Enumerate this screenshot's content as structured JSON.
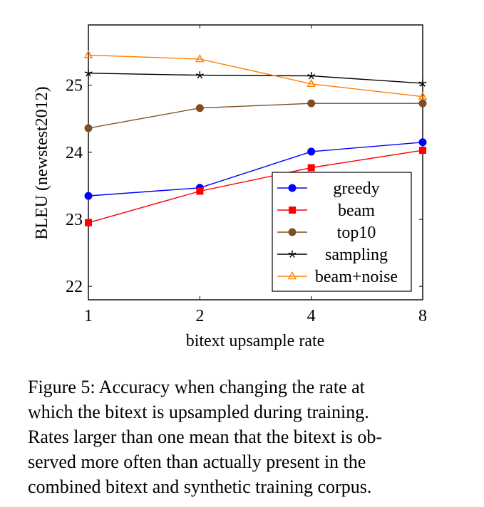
{
  "chart_data": {
    "type": "line",
    "xlabel": "bitext upsample rate",
    "ylabel": "BLEU (newstest2012)",
    "x": [
      "1",
      "2",
      "4",
      "8"
    ],
    "y_ticks": [
      22,
      23,
      24,
      25
    ],
    "ylim": [
      21.8,
      25.9
    ],
    "grid": false,
    "legend_position": "lower-right",
    "series": [
      {
        "name": "greedy",
        "color": "#0000ff",
        "marker": "circle",
        "values": [
          23.35,
          23.47,
          24.01,
          24.15
        ]
      },
      {
        "name": "beam",
        "color": "#ff0000",
        "marker": "square",
        "values": [
          22.95,
          23.42,
          23.77,
          24.03
        ]
      },
      {
        "name": "top10",
        "color": "#7f4f21",
        "marker": "circle",
        "values": [
          24.36,
          24.66,
          24.73,
          24.73
        ]
      },
      {
        "name": "sampling",
        "color": "#000000",
        "marker": "star",
        "values": [
          25.18,
          25.15,
          25.14,
          25.03
        ]
      },
      {
        "name": "beam+noise",
        "color": "#ff8000",
        "marker": "triangle",
        "values": [
          25.45,
          25.39,
          25.02,
          24.83
        ]
      }
    ]
  },
  "caption": {
    "lines": [
      "Figure 5:  Accuracy when changing the rate at",
      "which the bitext is upsampled during training.",
      "Rates larger than one mean that the bitext is ob-",
      "served more often than actually present in the",
      "combined bitext and synthetic training corpus."
    ]
  }
}
